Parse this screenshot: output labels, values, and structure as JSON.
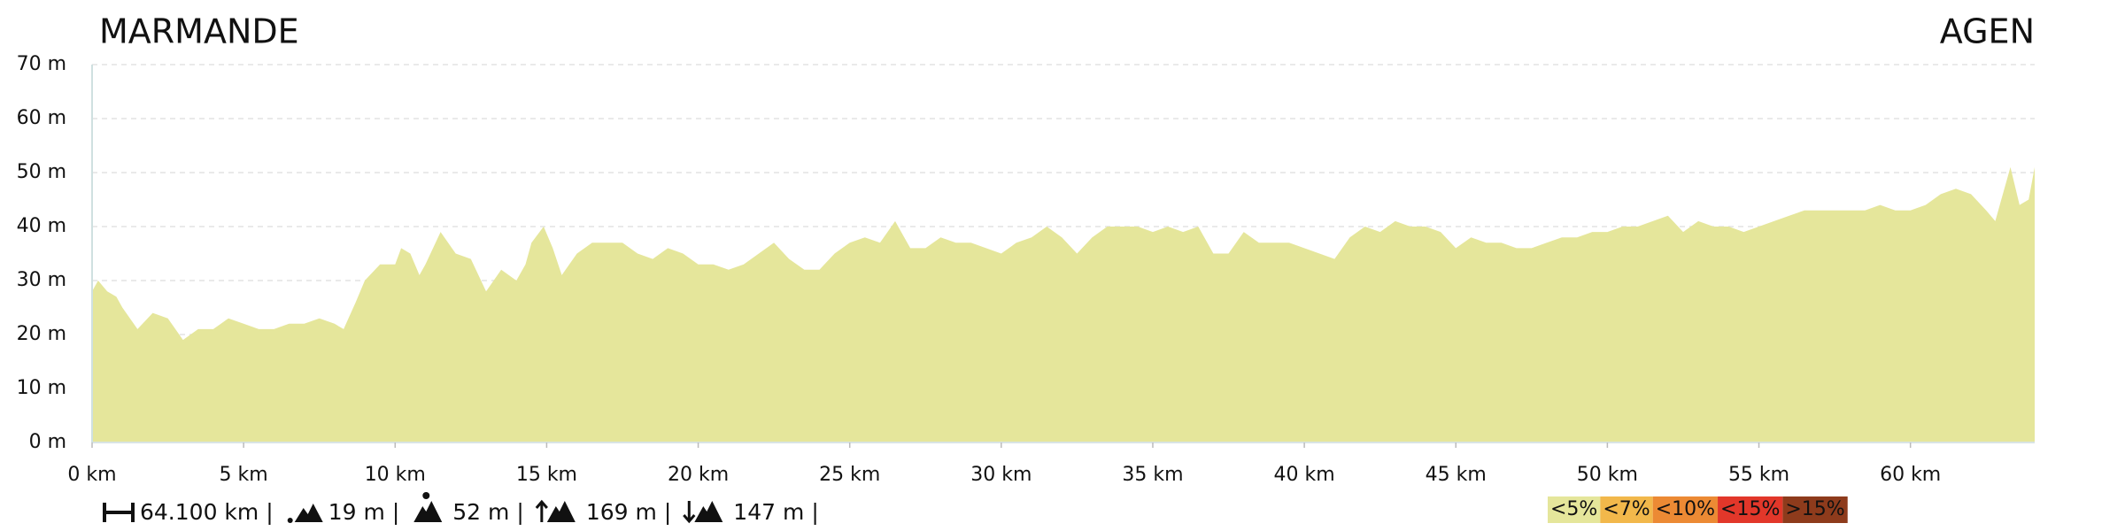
{
  "chart_data": {
    "type": "area",
    "start_label": "MARMANDE",
    "end_label": "AGEN",
    "xlim": [
      0,
      64.1
    ],
    "ylim": [
      0,
      70
    ],
    "xticks": [
      {
        "value": 0,
        "label": "0 km"
      },
      {
        "value": 5,
        "label": "5 km"
      },
      {
        "value": 10,
        "label": "10 km"
      },
      {
        "value": 15,
        "label": "15 km"
      },
      {
        "value": 20,
        "label": "20 km"
      },
      {
        "value": 25,
        "label": "25 km"
      },
      {
        "value": 30,
        "label": "30 km"
      },
      {
        "value": 35,
        "label": "35 km"
      },
      {
        "value": 40,
        "label": "40 km"
      },
      {
        "value": 45,
        "label": "45 km"
      },
      {
        "value": 50,
        "label": "50 km"
      },
      {
        "value": 55,
        "label": "55 km"
      },
      {
        "value": 60,
        "label": "60 km"
      }
    ],
    "yticks": [
      {
        "value": 0,
        "label": "0 m"
      },
      {
        "value": 10,
        "label": "10 m"
      },
      {
        "value": 20,
        "label": "20 m"
      },
      {
        "value": 30,
        "label": "30 m"
      },
      {
        "value": 40,
        "label": "40 m"
      },
      {
        "value": 50,
        "label": "50 m"
      },
      {
        "value": 60,
        "label": "60 m"
      },
      {
        "value": 70,
        "label": "70 m"
      }
    ],
    "grid": true,
    "color": "#e5e69b",
    "x": [
      0,
      0.2,
      0.5,
      0.8,
      1,
      1.5,
      2,
      2.5,
      3,
      3.5,
      4,
      4.5,
      5,
      5.5,
      6,
      6.5,
      7,
      7.5,
      8,
      8.3,
      8.7,
      9,
      9.5,
      10,
      10.2,
      10.5,
      10.8,
      11,
      11.5,
      12,
      12.5,
      13,
      13.5,
      14,
      14.3,
      14.5,
      14.9,
      15.2,
      15.5,
      16,
      16.5,
      17,
      17.5,
      18,
      18.5,
      19,
      19.5,
      20,
      20.5,
      21,
      21.5,
      22,
      22.5,
      23,
      23.5,
      24,
      24.5,
      25,
      25.5,
      26,
      26.5,
      27,
      27.5,
      28,
      28.5,
      29,
      29.5,
      30,
      30.5,
      31,
      31.5,
      32,
      32.5,
      33,
      33.5,
      34,
      34.5,
      35,
      35.5,
      36,
      36.5,
      37,
      37.5,
      38,
      38.5,
      39,
      39.5,
      40,
      40.5,
      41,
      41.5,
      42,
      42.5,
      43,
      43.5,
      44,
      44.5,
      45,
      45.5,
      46,
      46.5,
      47,
      47.5,
      48,
      48.5,
      49,
      49.5,
      50,
      50.5,
      51,
      51.5,
      52,
      52.5,
      53,
      53.5,
      54,
      54.5,
      55,
      55.5,
      56,
      56.5,
      57,
      57.5,
      58,
      58.5,
      59,
      59.5,
      60,
      60.5,
      61,
      61.5,
      62,
      62.5,
      62.8,
      63,
      63.3,
      63.6,
      63.9,
      64.1
    ],
    "values": [
      28,
      30,
      28,
      27,
      25,
      21,
      24,
      23,
      19,
      21,
      21,
      23,
      22,
      21,
      21,
      22,
      22,
      23,
      22,
      21,
      26,
      30,
      33,
      33,
      36,
      35,
      31,
      33,
      39,
      35,
      34,
      28,
      32,
      30,
      33,
      37,
      40,
      36,
      31,
      35,
      37,
      37,
      37,
      35,
      34,
      36,
      35,
      33,
      33,
      32,
      33,
      35,
      37,
      34,
      32,
      32,
      35,
      37,
      38,
      37,
      41,
      36,
      36,
      38,
      37,
      37,
      36,
      35,
      37,
      38,
      40,
      38,
      35,
      38,
      40,
      40,
      40,
      39,
      40,
      39,
      40,
      35,
      35,
      39,
      37,
      37,
      37,
      36,
      35,
      34,
      38,
      40,
      39,
      41,
      40,
      40,
      39,
      36,
      38,
      37,
      37,
      36,
      36,
      37,
      38,
      38,
      39,
      39,
      40,
      40,
      41,
      42,
      39,
      41,
      40,
      40,
      39,
      40,
      41,
      42,
      43,
      43,
      43,
      43,
      43,
      44,
      43,
      43,
      44,
      46,
      47,
      46,
      43,
      41,
      45,
      51,
      44,
      45,
      51
    ],
    "stats": [
      "64.100 km",
      "19 m",
      "52 m",
      "169 m",
      "147 m"
    ],
    "separator": "|",
    "slope_legend": [
      {
        "label": "<5%",
        "color": "#e5e69b"
      },
      {
        "label": "<7%",
        "color": "#f2b84b"
      },
      {
        "label": "<10%",
        "color": "#ec8a34"
      },
      {
        "label": "<15%",
        "color": "#e2372a"
      },
      {
        "label": ">15%",
        "color": "#8e3b1c"
      }
    ]
  }
}
